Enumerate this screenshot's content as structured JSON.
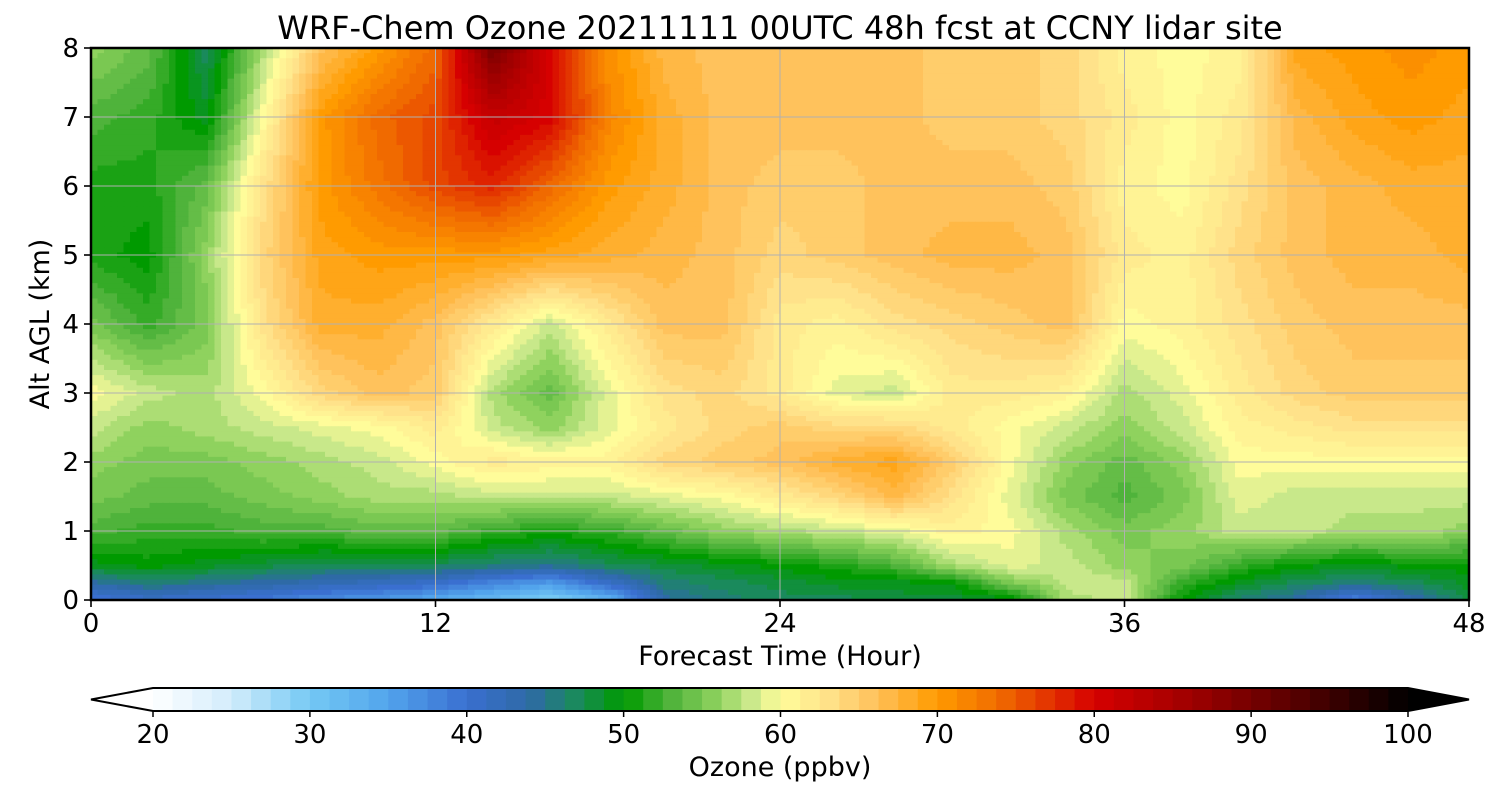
{
  "chart_data": {
    "type": "heatmap",
    "title": "WRF-Chem Ozone  20211111 00UTC 48h fcst at CCNY lidar site",
    "xlabel": "Forecast Time (Hour)",
    "ylabel": "Alt AGL (km)",
    "xlim": [
      0,
      48
    ],
    "ylim": [
      0,
      8
    ],
    "x_ticks": [
      "0",
      "12",
      "24",
      "36",
      "48"
    ],
    "y_ticks": [
      "0",
      "1",
      "2",
      "3",
      "4",
      "5",
      "6",
      "7",
      "8"
    ],
    "grid": true,
    "colorbar": {
      "label": "Ozone  (ppbv)",
      "range": [
        20,
        100
      ],
      "ticks": [
        "20",
        "30",
        "40",
        "50",
        "60",
        "70",
        "80",
        "90",
        "100"
      ],
      "extend": "both",
      "orientation": "horizontal",
      "placement": "bottom"
    },
    "colormap": [
      [
        20,
        "#ffffff"
      ],
      [
        25,
        "#d2ecfb"
      ],
      [
        30,
        "#74c8f4"
      ],
      [
        35,
        "#52a4ec"
      ],
      [
        40,
        "#3a6fd0"
      ],
      [
        44,
        "#2e6aa6"
      ],
      [
        47,
        "#1a8a5c"
      ],
      [
        50,
        "#009a00"
      ],
      [
        53,
        "#4fb33b"
      ],
      [
        56,
        "#8fd25e"
      ],
      [
        58,
        "#c8e88a"
      ],
      [
        60,
        "#fffc9a"
      ],
      [
        63,
        "#ffe28a"
      ],
      [
        66,
        "#ffc25c"
      ],
      [
        70,
        "#ff9b00"
      ],
      [
        74,
        "#f06a00"
      ],
      [
        80,
        "#d60000"
      ],
      [
        86,
        "#a00000"
      ],
      [
        92,
        "#600000"
      ],
      [
        100,
        "#000000"
      ]
    ],
    "x_hours": [
      0,
      2,
      4,
      6,
      8,
      10,
      12,
      14,
      16,
      18,
      20,
      22,
      24,
      26,
      28,
      30,
      32,
      34,
      36,
      38,
      40,
      42,
      44,
      46,
      48
    ],
    "y_km": [
      0,
      0.25,
      0.5,
      1,
      1.5,
      2,
      2.5,
      3,
      4,
      5,
      6,
      7,
      8
    ],
    "ozone_ppbv": [
      [
        39,
        41,
        40,
        39,
        37,
        36,
        34,
        32,
        29,
        33,
        44,
        46,
        47,
        47,
        48,
        48,
        49,
        57,
        58,
        50,
        46,
        44,
        38,
        43,
        48
      ],
      [
        44,
        46,
        45,
        44,
        43,
        42,
        41,
        38,
        36,
        41,
        46,
        47,
        48,
        49,
        49,
        50,
        55,
        58,
        58,
        52,
        49,
        47,
        46,
        47,
        49
      ],
      [
        49,
        50,
        49,
        48,
        47,
        47,
        47,
        46,
        45,
        47,
        48,
        49,
        50,
        51,
        53,
        57,
        59,
        58,
        56,
        55,
        52,
        50,
        49,
        50,
        50
      ],
      [
        53,
        52,
        52,
        53,
        53,
        54,
        54,
        52,
        51,
        52,
        54,
        56,
        57,
        58,
        59,
        61,
        60,
        57,
        55,
        56,
        58,
        58,
        57,
        57,
        56
      ],
      [
        55,
        54,
        54,
        55,
        56,
        57,
        57,
        58,
        58,
        58,
        59,
        60,
        62,
        64,
        67,
        63,
        59,
        55,
        53,
        55,
        59,
        58,
        58,
        58,
        58
      ],
      [
        56,
        55,
        55,
        56,
        57,
        58,
        60,
        62,
        61,
        61,
        64,
        65,
        66,
        68,
        69,
        65,
        60,
        56,
        54,
        56,
        60,
        60,
        60,
        60,
        60
      ],
      [
        58,
        56,
        57,
        58,
        59,
        60,
        62,
        58,
        56,
        59,
        62,
        64,
        65,
        64,
        64,
        62,
        60,
        58,
        56,
        58,
        61,
        62,
        63,
        63,
        63
      ],
      [
        60,
        58,
        57,
        60,
        64,
        66,
        65,
        57,
        54,
        59,
        63,
        64,
        62,
        59,
        58,
        62,
        62,
        61,
        57,
        59,
        62,
        64,
        65,
        65,
        65
      ],
      [
        55,
        52,
        55,
        63,
        68,
        68,
        66,
        62,
        58,
        62,
        66,
        66,
        62,
        61,
        63,
        64,
        65,
        66,
        60,
        61,
        63,
        65,
        66,
        66,
        66
      ],
      [
        51,
        50,
        56,
        64,
        69,
        70,
        70,
        70,
        69,
        68,
        67,
        66,
        64,
        65,
        66,
        67,
        67,
        66,
        62,
        61,
        64,
        66,
        67,
        67,
        68
      ],
      [
        51,
        51,
        54,
        63,
        70,
        73,
        76,
        78,
        74,
        70,
        68,
        66,
        65,
        65,
        66,
        66,
        66,
        65,
        61,
        60,
        63,
        66,
        67,
        68,
        68
      ],
      [
        53,
        52,
        49,
        60,
        70,
        74,
        76,
        82,
        80,
        72,
        68,
        66,
        66,
        66,
        66,
        65,
        65,
        64,
        62,
        60,
        62,
        67,
        69,
        70,
        69
      ],
      [
        56,
        54,
        47,
        57,
        66,
        70,
        74,
        90,
        80,
        71,
        67,
        66,
        66,
        66,
        66,
        65,
        65,
        64,
        61,
        60,
        61,
        69,
        70,
        71,
        70
      ]
    ]
  }
}
